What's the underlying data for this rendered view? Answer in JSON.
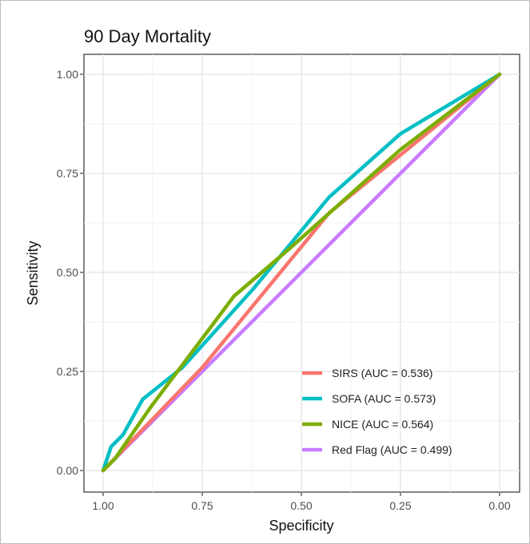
{
  "chart_data": {
    "type": "line",
    "title": "90 Day Mortality",
    "xlabel": "Specificity",
    "ylabel": "Sensitivity",
    "xlim": [
      1.0,
      0.0
    ],
    "ylim": [
      0.0,
      1.0
    ],
    "x_reversed": true,
    "x_ticks": [
      "1.00",
      "0.75",
      "0.50",
      "0.25",
      "0.00"
    ],
    "y_ticks": [
      "0.00",
      "0.25",
      "0.50",
      "0.75",
      "1.00"
    ],
    "grid": true,
    "legend_position": "bottom-right",
    "series": [
      {
        "name": "SIRS (AUC = 0.536)",
        "color": "#f8766d",
        "points": [
          {
            "specificity": 1.0,
            "sensitivity": 0.0
          },
          {
            "specificity": 0.75,
            "sensitivity": 0.26
          },
          {
            "specificity": 0.43,
            "sensitivity": 0.65
          },
          {
            "specificity": 0.0,
            "sensitivity": 1.0
          }
        ]
      },
      {
        "name": "SOFA (AUC = 0.573)",
        "color": "#00bfc4",
        "points": [
          {
            "specificity": 1.0,
            "sensitivity": 0.0
          },
          {
            "specificity": 0.98,
            "sensitivity": 0.06
          },
          {
            "specificity": 0.95,
            "sensitivity": 0.09
          },
          {
            "specificity": 0.9,
            "sensitivity": 0.18
          },
          {
            "specificity": 0.8,
            "sensitivity": 0.26
          },
          {
            "specificity": 0.62,
            "sensitivity": 0.46
          },
          {
            "specificity": 0.43,
            "sensitivity": 0.69
          },
          {
            "specificity": 0.25,
            "sensitivity": 0.85
          },
          {
            "specificity": 0.0,
            "sensitivity": 1.0
          }
        ]
      },
      {
        "name": "NICE (AUC = 0.564)",
        "color": "#7cae00",
        "points": [
          {
            "specificity": 1.0,
            "sensitivity": 0.0
          },
          {
            "specificity": 0.97,
            "sensitivity": 0.03
          },
          {
            "specificity": 0.88,
            "sensitivity": 0.16
          },
          {
            "specificity": 0.67,
            "sensitivity": 0.44
          },
          {
            "specificity": 0.53,
            "sensitivity": 0.56
          },
          {
            "specificity": 0.25,
            "sensitivity": 0.81
          },
          {
            "specificity": 0.0,
            "sensitivity": 1.0
          }
        ]
      },
      {
        "name": "Red Flag (AUC = 0.499)",
        "color": "#c77cff",
        "points": [
          {
            "specificity": 1.0,
            "sensitivity": 0.0
          },
          {
            "specificity": 0.0,
            "sensitivity": 1.0
          }
        ]
      }
    ]
  }
}
